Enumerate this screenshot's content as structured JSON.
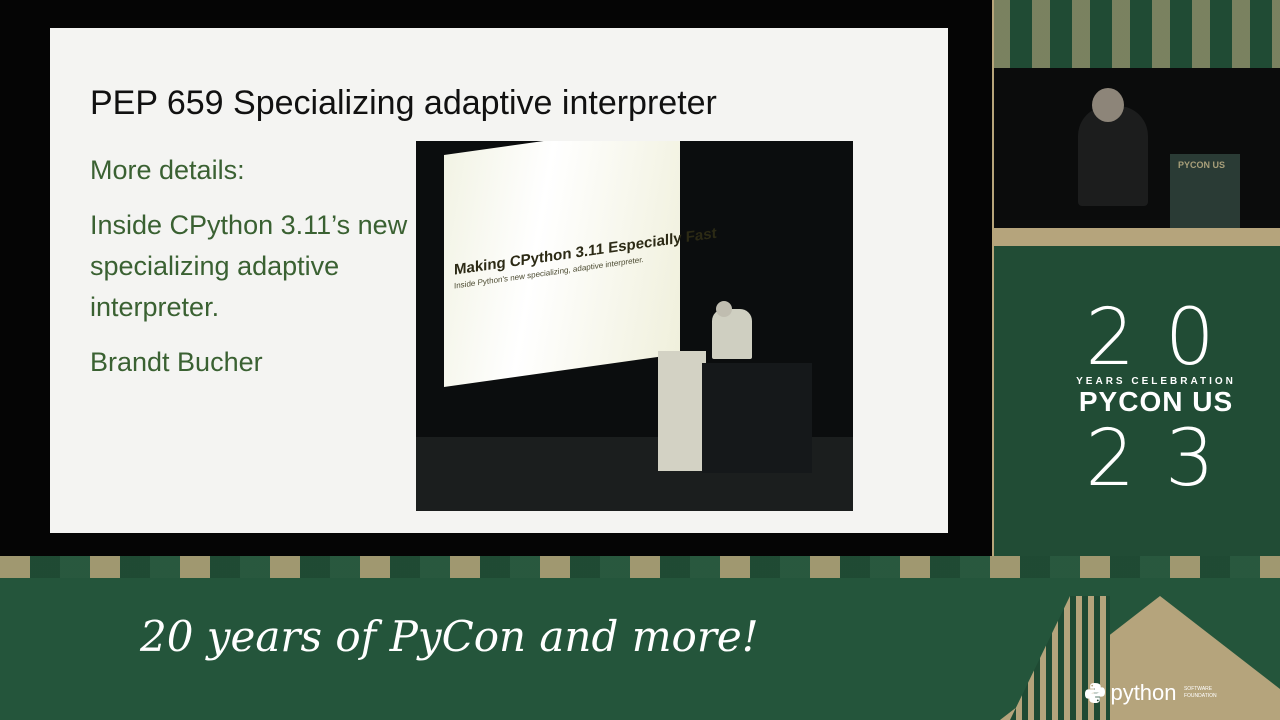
{
  "slide": {
    "title": "PEP 659 Specializing adaptive interpreter",
    "body": {
      "line1": "More details:",
      "line2": "Inside CPython 3.11’s new specializing adaptive interpreter.",
      "line3": "Brandt Bucher"
    },
    "photo": {
      "screen_title": "Making CPython 3.11 Especially Fast",
      "screen_subtitle": "Inside Python's new specializing, adaptive interpreter."
    }
  },
  "camera": {
    "podium_text": "PYCON US"
  },
  "logo": {
    "top_number": "20",
    "years_label": "YEARS CELEBRATION",
    "brand": "PYCON US",
    "bottom_number": "23"
  },
  "tagline": "20 years of PyCon and more!",
  "psf": {
    "word": "python",
    "sub_line1": "SOFTWARE",
    "sub_line2": "FOUNDATION"
  },
  "colors": {
    "background_green": "#214c35",
    "accent_tan": "#b5a47c",
    "slide_text_green": "#3a6132"
  }
}
